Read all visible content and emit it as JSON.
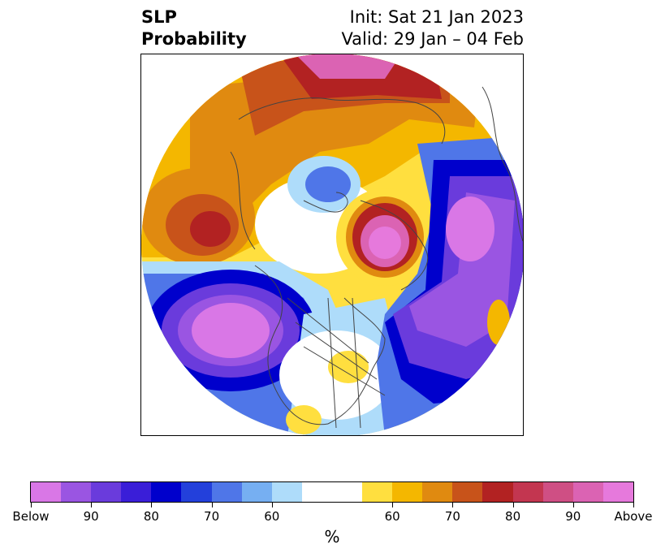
{
  "title": {
    "left_line1": "SLP",
    "left_line2": "Probability",
    "right_line1": "Init: Sat 21 Jan 2023",
    "right_line2": "Valid: 29 Jan – 04 Feb"
  },
  "colorbar": {
    "colors": [
      "#d977e6",
      "#9a55e2",
      "#6a3bdc",
      "#3a1ed8",
      "#0000cc",
      "#2340db",
      "#4f76e8",
      "#76aff2",
      "#aedcfa",
      "#ffffff",
      "#ffdf3f",
      "#f4b700",
      "#e08a10",
      "#c8531a",
      "#b22222",
      "#c33650",
      "#cf4f84",
      "#db63b3",
      "#e679dc"
    ],
    "weights": [
      1,
      1,
      1,
      1,
      1,
      1,
      1,
      1,
      1,
      2,
      1,
      1,
      1,
      1,
      1,
      1,
      1,
      1,
      1
    ],
    "tick_labels": [
      "Below",
      "90",
      "80",
      "70",
      "60",
      "60",
      "70",
      "80",
      "90",
      "Above"
    ],
    "unit_label": "%"
  },
  "map": {
    "projection": "north-polar-stereographic",
    "colors": {
      "above_light": "#ffdf3f",
      "above_mid": "#f4b700",
      "above_orange": "#e08a10",
      "above_dark": "#c8531a",
      "above_red": "#b22222",
      "above_magenta": "#db63b3",
      "above_pink": "#e679dc",
      "below_lightblue": "#aedcfa",
      "below_blue": "#4f76e8",
      "below_deep": "#0000cc",
      "below_purple": "#6a3bdc",
      "below_violet": "#9a55e2",
      "below_pink": "#d977e6",
      "coast": "#444444"
    }
  }
}
